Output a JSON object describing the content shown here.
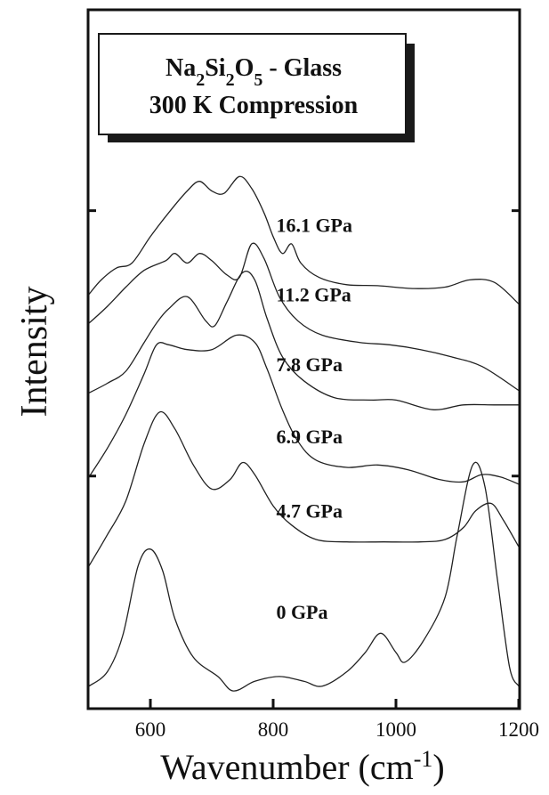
{
  "chart_data": {
    "type": "line",
    "title": {
      "line1": {
        "parts": [
          {
            "t": "Na",
            "sub": false
          },
          {
            "t": "2",
            "sub": true
          },
          {
            "t": "Si",
            "sub": false
          },
          {
            "t": "2",
            "sub": true
          },
          {
            "t": "O",
            "sub": false
          },
          {
            "t": "5",
            "sub": true
          },
          {
            "t": " - Glass",
            "sub": false
          }
        ]
      },
      "line2": "300 K Compression"
    },
    "xlabel": {
      "main": "Wavenumber (cm",
      "sup": "-1",
      "close": ")"
    },
    "ylabel": "Intensity",
    "xlim": [
      500,
      1200
    ],
    "ylim": [
      0,
      14.5
    ],
    "x_ticks": [
      600,
      800,
      1000,
      1200
    ],
    "x_tick_labels": [
      "600",
      "800",
      "1000",
      "1200"
    ],
    "y_ticks_unlabeled": [
      4.82,
      10.34
    ],
    "grid": false,
    "legend": "none",
    "line_color": "#222222",
    "series": [
      {
        "name": "16.1 GPa",
        "label_x": 805,
        "label_y": 9.9,
        "points": [
          [
            500,
            8.6
          ],
          [
            520,
            8.9
          ],
          [
            545,
            9.15
          ],
          [
            570,
            9.25
          ],
          [
            600,
            9.8
          ],
          [
            630,
            10.3
          ],
          [
            660,
            10.75
          ],
          [
            680,
            10.95
          ],
          [
            700,
            10.75
          ],
          [
            720,
            10.7
          ],
          [
            745,
            11.05
          ],
          [
            765,
            10.8
          ],
          [
            785,
            10.3
          ],
          [
            800,
            9.8
          ],
          [
            815,
            9.45
          ],
          [
            830,
            9.65
          ],
          [
            845,
            9.25
          ],
          [
            875,
            8.95
          ],
          [
            920,
            8.8
          ],
          [
            970,
            8.78
          ],
          [
            1030,
            8.72
          ],
          [
            1080,
            8.75
          ],
          [
            1120,
            8.9
          ],
          [
            1160,
            8.85
          ],
          [
            1200,
            8.4
          ]
        ]
      },
      {
        "name": "11.2 GPa",
        "label_x": 805,
        "label_y": 8.45,
        "points": [
          [
            500,
            8.0
          ],
          [
            530,
            8.35
          ],
          [
            560,
            8.75
          ],
          [
            590,
            9.1
          ],
          [
            625,
            9.3
          ],
          [
            640,
            9.45
          ],
          [
            660,
            9.25
          ],
          [
            680,
            9.45
          ],
          [
            700,
            9.3
          ],
          [
            725,
            9.0
          ],
          [
            745,
            8.95
          ],
          [
            765,
            9.65
          ],
          [
            785,
            9.35
          ],
          [
            810,
            8.55
          ],
          [
            840,
            8.05
          ],
          [
            880,
            7.75
          ],
          [
            940,
            7.6
          ],
          [
            990,
            7.55
          ],
          [
            1040,
            7.45
          ],
          [
            1090,
            7.3
          ],
          [
            1140,
            7.1
          ],
          [
            1200,
            6.6
          ]
        ]
      },
      {
        "name": "7.8 GPa",
        "label_x": 805,
        "label_y": 7.0,
        "points": [
          [
            500,
            6.55
          ],
          [
            530,
            6.75
          ],
          [
            560,
            7.0
          ],
          [
            590,
            7.6
          ],
          [
            610,
            8.0
          ],
          [
            630,
            8.3
          ],
          [
            660,
            8.55
          ],
          [
            690,
            8.05
          ],
          [
            705,
            7.95
          ],
          [
            725,
            8.45
          ],
          [
            750,
            9.05
          ],
          [
            770,
            8.9
          ],
          [
            790,
            8.1
          ],
          [
            815,
            7.3
          ],
          [
            850,
            6.8
          ],
          [
            900,
            6.45
          ],
          [
            960,
            6.4
          ],
          [
            1000,
            6.4
          ],
          [
            1060,
            6.2
          ],
          [
            1110,
            6.3
          ],
          [
            1160,
            6.3
          ],
          [
            1200,
            6.3
          ]
        ]
      },
      {
        "name": "6.9 GPa",
        "label_x": 805,
        "label_y": 5.5,
        "points": [
          [
            500,
            4.8
          ],
          [
            530,
            5.4
          ],
          [
            560,
            6.1
          ],
          [
            590,
            6.95
          ],
          [
            610,
            7.55
          ],
          [
            630,
            7.55
          ],
          [
            660,
            7.45
          ],
          [
            700,
            7.45
          ],
          [
            740,
            7.75
          ],
          [
            770,
            7.6
          ],
          [
            790,
            7.05
          ],
          [
            815,
            6.2
          ],
          [
            840,
            5.55
          ],
          [
            870,
            5.15
          ],
          [
            920,
            5.0
          ],
          [
            970,
            5.05
          ],
          [
            1020,
            4.95
          ],
          [
            1070,
            4.75
          ],
          [
            1110,
            4.7
          ],
          [
            1140,
            4.85
          ],
          [
            1170,
            4.8
          ],
          [
            1200,
            4.65
          ]
        ]
      },
      {
        "name": "4.7 GPa",
        "label_x": 805,
        "label_y": 3.95,
        "points": [
          [
            500,
            2.95
          ],
          [
            530,
            3.6
          ],
          [
            560,
            4.3
          ],
          [
            590,
            5.5
          ],
          [
            615,
            6.15
          ],
          [
            640,
            5.8
          ],
          [
            670,
            5.05
          ],
          [
            700,
            4.55
          ],
          [
            730,
            4.75
          ],
          [
            750,
            5.1
          ],
          [
            770,
            4.85
          ],
          [
            800,
            4.2
          ],
          [
            830,
            3.8
          ],
          [
            870,
            3.5
          ],
          [
            920,
            3.45
          ],
          [
            980,
            3.45
          ],
          [
            1040,
            3.45
          ],
          [
            1080,
            3.5
          ],
          [
            1110,
            3.75
          ],
          [
            1130,
            4.1
          ],
          [
            1155,
            4.25
          ],
          [
            1175,
            3.9
          ],
          [
            1200,
            3.35
          ]
        ]
      },
      {
        "name": "0 GPa",
        "label_x": 805,
        "label_y": 1.85,
        "points": [
          [
            500,
            0.45
          ],
          [
            530,
            0.75
          ],
          [
            555,
            1.5
          ],
          [
            580,
            2.95
          ],
          [
            600,
            3.3
          ],
          [
            620,
            2.85
          ],
          [
            640,
            1.85
          ],
          [
            670,
            1.05
          ],
          [
            710,
            0.65
          ],
          [
            735,
            0.35
          ],
          [
            770,
            0.55
          ],
          [
            810,
            0.65
          ],
          [
            850,
            0.55
          ],
          [
            880,
            0.45
          ],
          [
            920,
            0.75
          ],
          [
            950,
            1.15
          ],
          [
            975,
            1.55
          ],
          [
            1000,
            1.15
          ],
          [
            1015,
            0.95
          ],
          [
            1045,
            1.4
          ],
          [
            1080,
            2.3
          ],
          [
            1100,
            3.6
          ],
          [
            1125,
            5.05
          ],
          [
            1145,
            4.6
          ],
          [
            1165,
            2.7
          ],
          [
            1185,
            0.85
          ],
          [
            1200,
            0.45
          ]
        ]
      }
    ]
  }
}
